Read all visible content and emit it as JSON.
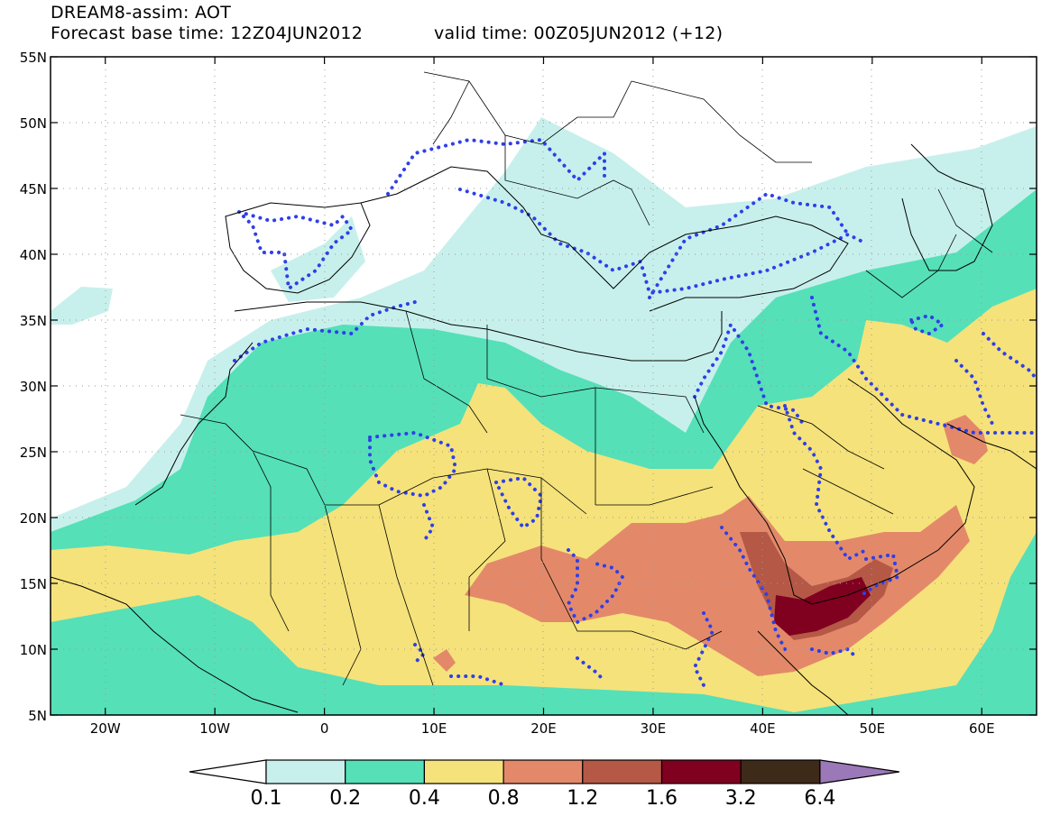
{
  "header": {
    "title": "DREAM8-assim: AOT",
    "base_time_label": "Forecast base time: 12Z04JUN2012",
    "valid_time_label": "valid time: 00Z05JUN2012 (+12)"
  },
  "map": {
    "projection": "lat-lon",
    "lon_range": [
      -25,
      65
    ],
    "lat_range": [
      5,
      55
    ],
    "lat_ticks": [
      "55N",
      "50N",
      "45N",
      "40N",
      "35N",
      "30N",
      "25N",
      "20N",
      "15N",
      "10N",
      "5N"
    ],
    "lon_ticks": [
      "20W",
      "10W",
      "0",
      "10E",
      "20E",
      "30E",
      "40E",
      "50E",
      "60E"
    ],
    "grid": "dotted"
  },
  "legend": {
    "labels": [
      "0.1",
      "0.2",
      "0.4",
      "0.8",
      "1.2",
      "1.6",
      "3.2",
      "6.4"
    ],
    "colors": [
      "#ffffff",
      "#c7f0ec",
      "#55e0b8",
      "#f5e27a",
      "#e3896a",
      "#b55846",
      "#800020",
      "#3e2a18",
      "#9b78b8"
    ]
  },
  "overlay": {
    "dotted_contour_color": "#2f3fe8"
  }
}
